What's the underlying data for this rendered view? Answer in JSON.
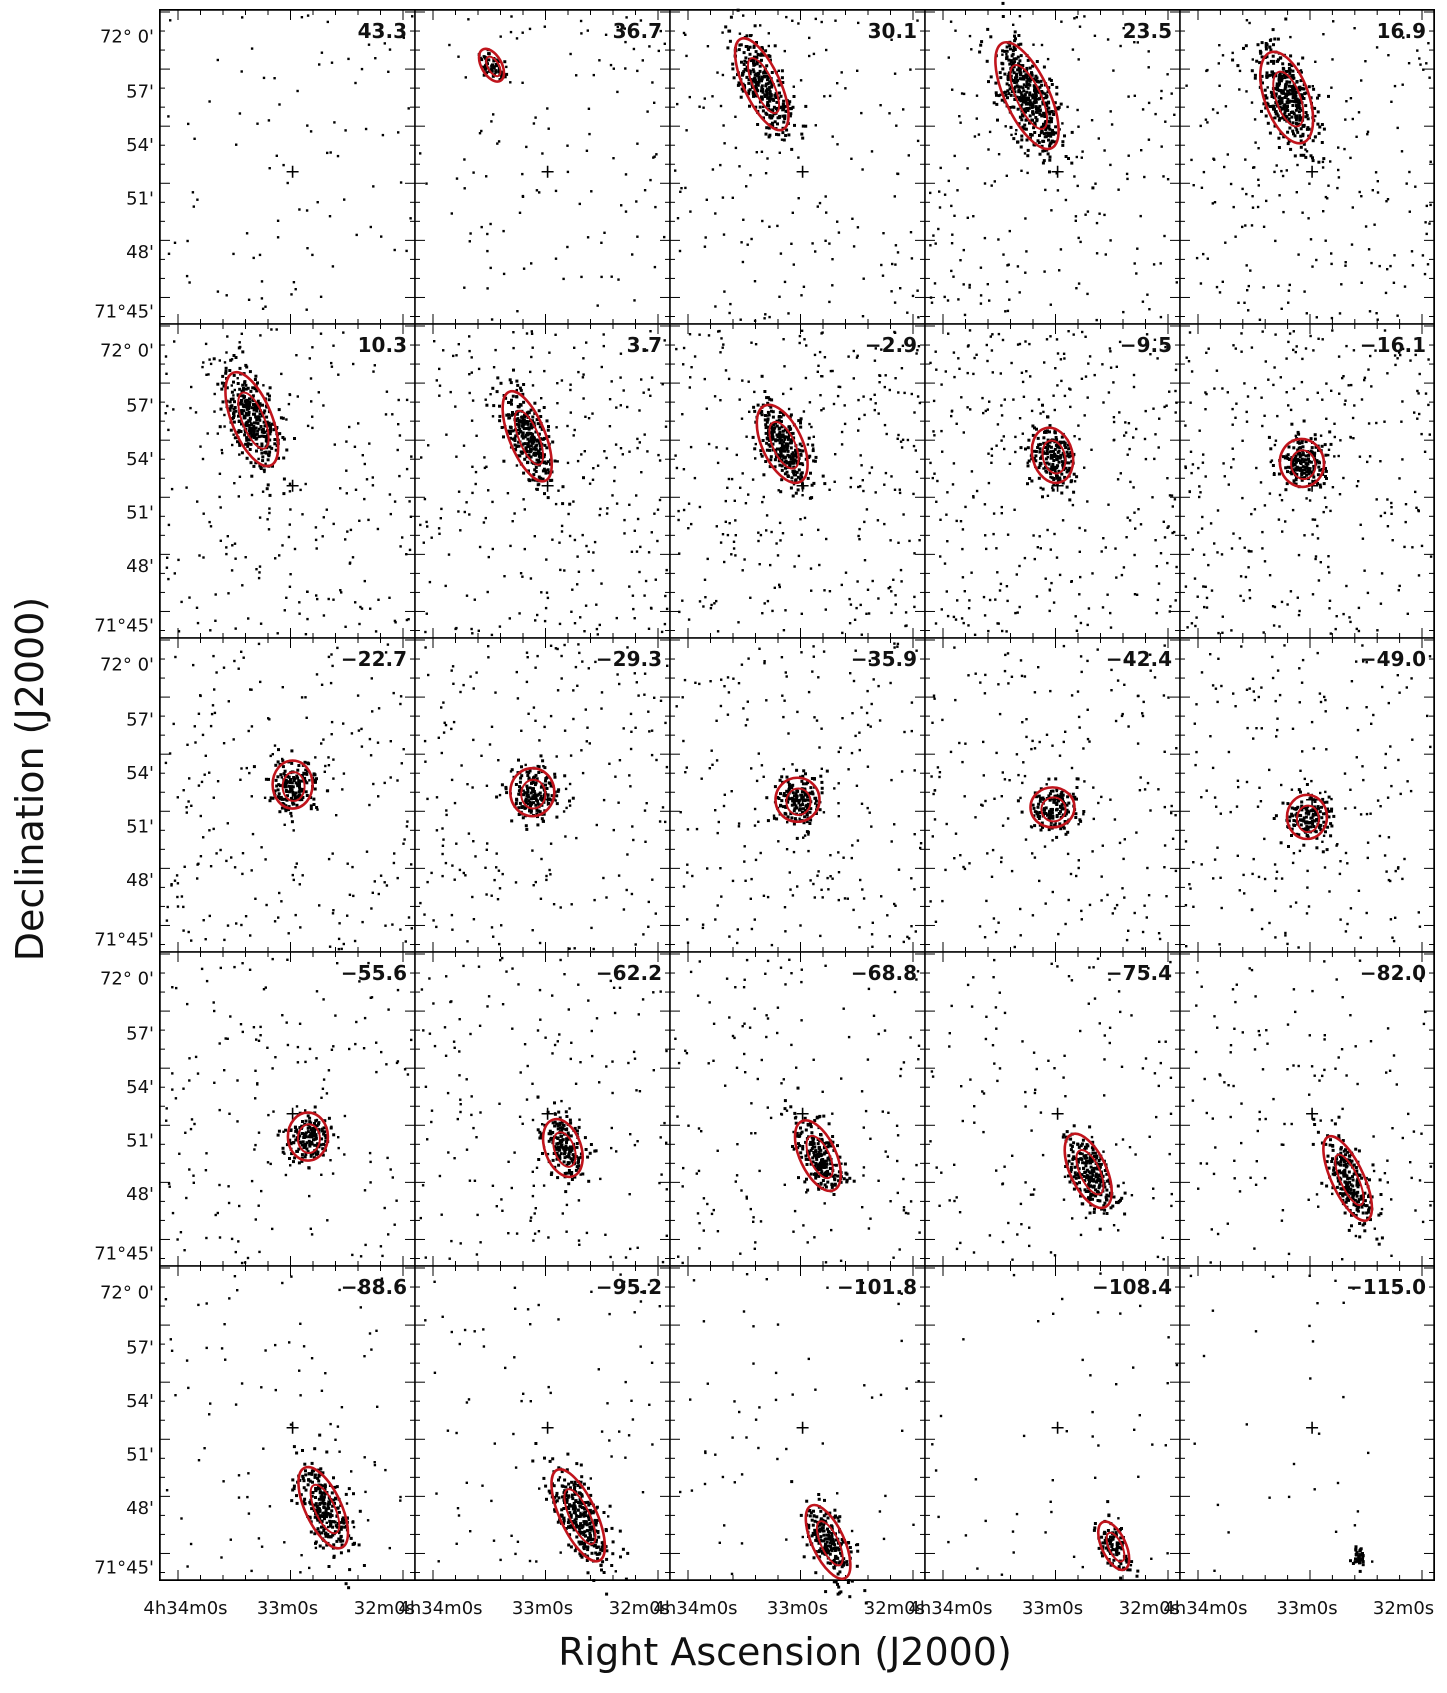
{
  "figure": {
    "x_axis_label": "Right Ascension (J2000)",
    "y_axis_label": "Declination (J2000)",
    "dec_tick_labels": [
      "72° 0'",
      "57'",
      "54'",
      "51'",
      "48'",
      "71°45'"
    ],
    "ra_tick_labels": [
      "4h34m0s",
      "33m0s",
      "32m0s"
    ],
    "contour_color": "#c0141c",
    "point_color": "#000000"
  },
  "chart_data": {
    "type": "scatter",
    "xlabel": "Right Ascension (J2000)",
    "ylabel": "Declination (J2000)",
    "rows": 5,
    "cols": 5,
    "channels": [
      "43.3",
      "36.7",
      "30.1",
      "23.5",
      "16.9",
      "10.3",
      "3.7",
      "−2.9",
      "−9.5",
      "−16.1",
      "−22.7",
      "−29.3",
      "−35.9",
      "−42.4",
      "−49.0",
      "−55.6",
      "−62.2",
      "−68.8",
      "−75.4",
      "−82.0",
      "−88.6",
      "−95.2",
      "−101.8",
      "−108.4",
      "−115.0"
    ],
    "emission_centers_dec_arcmin": [
      null,
      58.6,
      57.6,
      57.0,
      56.9,
      56.5,
      55.6,
      55.2,
      54.6,
      54.2,
      53.8,
      53.4,
      53.0,
      52.6,
      52.1,
      51.8,
      51.2,
      50.8,
      50.0,
      49.6,
      48.8,
      48.4,
      47.0,
      46.8,
      46.2
    ],
    "cross_marker_dec_arcmin": 53.0,
    "dec_range_arcmin": [
      45,
      61.5
    ]
  }
}
